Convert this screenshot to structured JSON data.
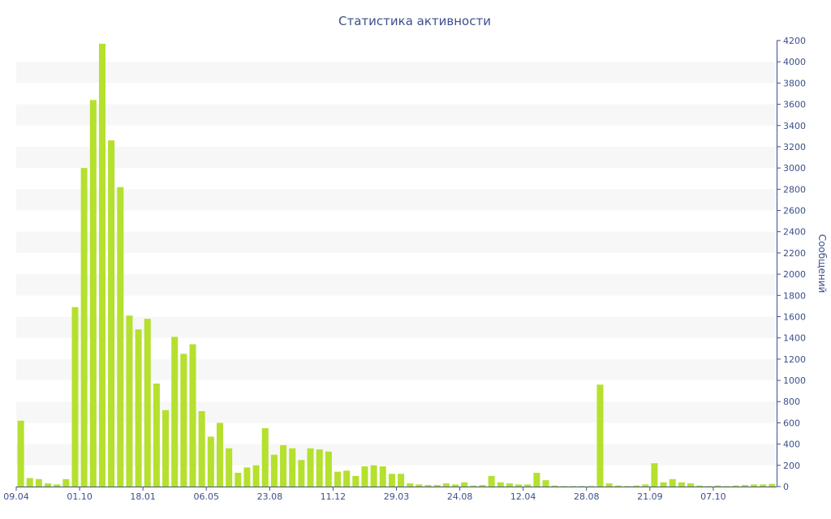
{
  "chart_data": {
    "type": "bar",
    "title": "Статистика активности",
    "xlabel": "",
    "ylabel": "Сообщений",
    "ylim": [
      0,
      4200
    ],
    "y_ticks": [
      0,
      200,
      400,
      600,
      800,
      1000,
      1200,
      1400,
      1600,
      1800,
      2000,
      2200,
      2400,
      2600,
      2800,
      3000,
      3200,
      3400,
      3600,
      3800,
      4000,
      4200
    ],
    "x_tick_labels": [
      {
        "label": "09.04",
        "index": 0
      },
      {
        "label": "01.10",
        "index": 7
      },
      {
        "label": "18.01",
        "index": 14
      },
      {
        "label": "06.05",
        "index": 21
      },
      {
        "label": "23.08",
        "index": 28
      },
      {
        "label": "11.12",
        "index": 35
      },
      {
        "label": "29.03",
        "index": 42
      },
      {
        "label": "24.08",
        "index": 49
      },
      {
        "label": "12.04",
        "index": 56
      },
      {
        "label": "28.08",
        "index": 63
      },
      {
        "label": "21.09",
        "index": 70
      },
      {
        "label": "07.10",
        "index": 77
      }
    ],
    "grid": "alternating horizontal bands",
    "y_axis_position": "right",
    "bar_color": "#b5e02e",
    "band_color": "#f7f7f7",
    "axis_color": "#3d4f8c",
    "values": [
      620,
      80,
      70,
      30,
      20,
      70,
      1690,
      3000,
      3640,
      4170,
      3260,
      2820,
      1610,
      1480,
      1580,
      970,
      720,
      1410,
      1250,
      1340,
      710,
      470,
      600,
      360,
      130,
      180,
      200,
      550,
      300,
      390,
      360,
      250,
      360,
      350,
      330,
      140,
      150,
      100,
      190,
      200,
      190,
      120,
      120,
      30,
      20,
      15,
      15,
      30,
      20,
      40,
      10,
      15,
      100,
      40,
      30,
      20,
      20,
      130,
      60,
      10,
      5,
      5,
      5,
      5,
      960,
      30,
      10,
      5,
      10,
      20,
      220,
      40,
      70,
      40,
      30,
      10,
      5,
      10,
      5,
      10,
      15,
      20,
      20,
      25
    ]
  }
}
